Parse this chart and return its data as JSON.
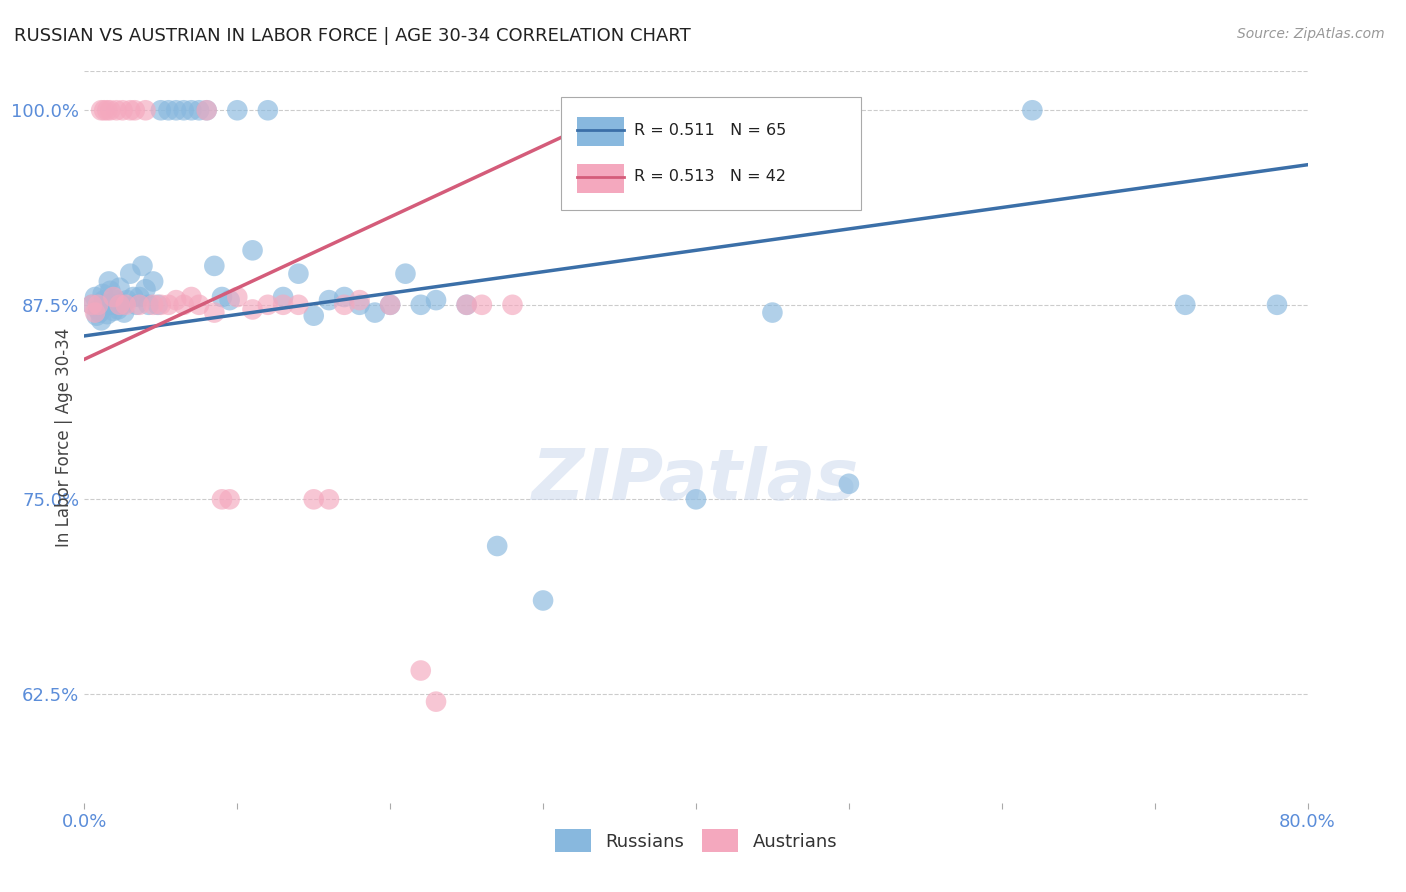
{
  "title": "RUSSIAN VS AUSTRIAN IN LABOR FORCE | AGE 30-34 CORRELATION CHART",
  "source": "Source: ZipAtlas.com",
  "ylabel": "In Labor Force | Age 30-34",
  "xlim": [
    0.0,
    0.8
  ],
  "ylim": [
    0.555,
    1.025
  ],
  "yticks": [
    0.625,
    0.75,
    0.875,
    1.0
  ],
  "ytick_labels": [
    "62.5%",
    "75.0%",
    "87.5%",
    "100.0%"
  ],
  "xticks": [
    0.0,
    0.1,
    0.2,
    0.3,
    0.4,
    0.5,
    0.6,
    0.7,
    0.8
  ],
  "xtick_labels": [
    "0.0%",
    "",
    "",
    "",
    "",
    "",
    "",
    "",
    "80.0%"
  ],
  "R_russian": 0.511,
  "N_russian": 65,
  "R_austrian": 0.513,
  "N_austrian": 42,
  "russian_color": "#88b8de",
  "austrian_color": "#f4a8be",
  "trendline_russian": "#3b6fa8",
  "trendline_austrian": "#d45c7a",
  "russians_x": [
    0.005,
    0.007,
    0.008,
    0.009,
    0.01,
    0.011,
    0.012,
    0.013,
    0.014,
    0.015,
    0.016,
    0.017,
    0.018,
    0.019,
    0.02,
    0.021,
    0.022,
    0.023,
    0.025,
    0.026,
    0.028,
    0.03,
    0.032,
    0.034,
    0.036,
    0.038,
    0.04,
    0.042,
    0.045,
    0.048,
    0.05,
    0.055,
    0.06,
    0.065,
    0.07,
    0.075,
    0.08,
    0.085,
    0.09,
    0.095,
    0.1,
    0.11,
    0.12,
    0.13,
    0.14,
    0.15,
    0.16,
    0.17,
    0.18,
    0.19,
    0.2,
    0.21,
    0.22,
    0.23,
    0.25,
    0.27,
    0.3,
    0.33,
    0.36,
    0.4,
    0.45,
    0.5,
    0.62,
    0.72,
    0.78
  ],
  "russians_y": [
    0.875,
    0.88,
    0.868,
    0.872,
    0.87,
    0.865,
    0.882,
    0.878,
    0.875,
    0.869,
    0.89,
    0.884,
    0.875,
    0.871,
    0.875,
    0.878,
    0.872,
    0.886,
    0.875,
    0.87,
    0.878,
    0.895,
    0.88,
    0.875,
    0.88,
    0.9,
    0.885,
    0.875,
    0.89,
    0.875,
    1.0,
    1.0,
    1.0,
    1.0,
    1.0,
    1.0,
    1.0,
    0.9,
    0.88,
    0.878,
    1.0,
    0.91,
    1.0,
    0.88,
    0.895,
    0.868,
    0.878,
    0.88,
    0.875,
    0.87,
    0.875,
    0.895,
    0.875,
    0.878,
    0.875,
    0.72,
    0.685,
    1.0,
    1.0,
    0.75,
    0.87,
    0.76,
    1.0,
    0.875,
    0.875
  ],
  "austrians_x": [
    0.005,
    0.007,
    0.009,
    0.011,
    0.013,
    0.015,
    0.017,
    0.019,
    0.021,
    0.023,
    0.025,
    0.027,
    0.03,
    0.033,
    0.036,
    0.04,
    0.045,
    0.05,
    0.055,
    0.06,
    0.065,
    0.07,
    0.075,
    0.08,
    0.085,
    0.09,
    0.095,
    0.1,
    0.11,
    0.12,
    0.13,
    0.14,
    0.15,
    0.16,
    0.17,
    0.18,
    0.2,
    0.22,
    0.25,
    0.28,
    0.23,
    0.26
  ],
  "austrians_y": [
    0.875,
    0.87,
    0.875,
    1.0,
    1.0,
    1.0,
    1.0,
    0.88,
    1.0,
    0.875,
    1.0,
    0.875,
    1.0,
    1.0,
    0.875,
    1.0,
    0.875,
    0.875,
    0.875,
    0.878,
    0.875,
    0.88,
    0.875,
    1.0,
    0.87,
    0.75,
    0.75,
    0.88,
    0.872,
    0.875,
    0.875,
    0.875,
    0.75,
    0.75,
    0.875,
    0.878,
    0.875,
    0.64,
    0.875,
    0.875,
    0.62,
    0.875
  ],
  "trendline_russian_x0": 0.0,
  "trendline_russian_x1": 0.8,
  "trendline_russian_y0": 0.855,
  "trendline_russian_y1": 0.965,
  "trendline_austrian_x0": 0.0,
  "trendline_austrian_x1": 0.35,
  "trendline_austrian_y0": 0.84,
  "trendline_austrian_y1": 1.0
}
